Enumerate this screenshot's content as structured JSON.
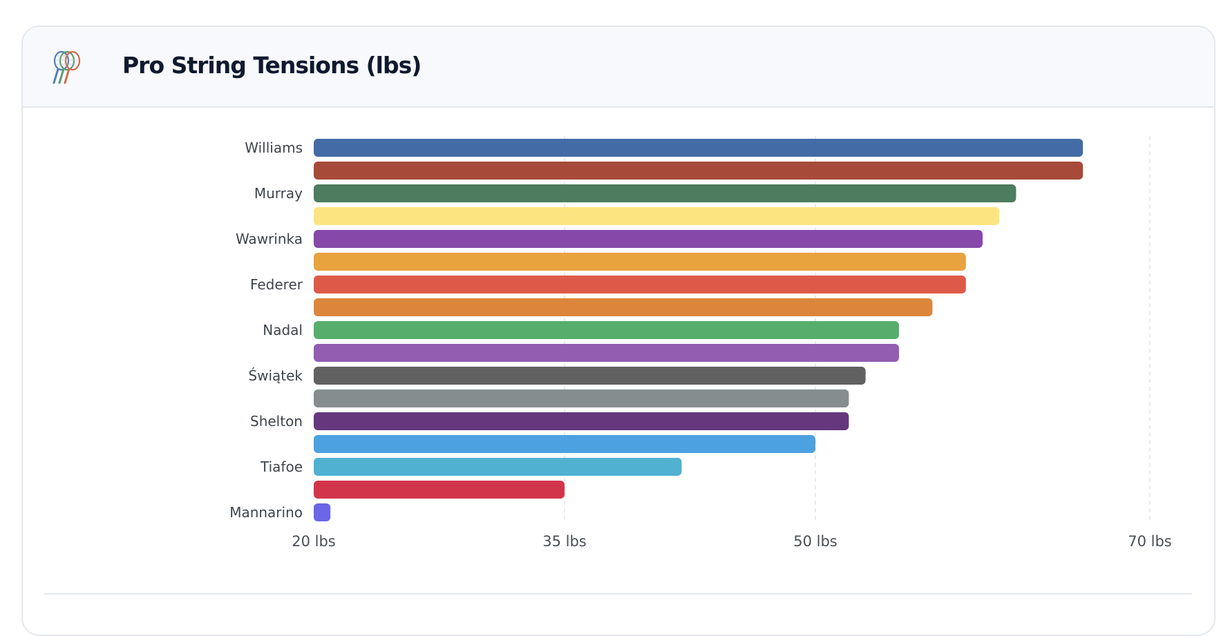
{
  "card": {
    "title": "Pro String Tensions (lbs)",
    "icon": "tennis-racquets-icon"
  },
  "chart_data": {
    "type": "bar",
    "orientation": "horizontal",
    "title": "Pro String Tensions (lbs)",
    "xlabel": "",
    "ylabel": "",
    "xlim": [
      20,
      70
    ],
    "ticks": [
      {
        "value": 20,
        "label": "20 lbs"
      },
      {
        "value": 35,
        "label": "35 lbs"
      },
      {
        "value": 50,
        "label": "50 lbs"
      },
      {
        "value": 70,
        "label": "70 lbs"
      }
    ],
    "grid": true,
    "bars": [
      {
        "label": "Williams",
        "value": 66,
        "color": "#436ba6"
      },
      {
        "label": "",
        "value": 66,
        "color": "#a74a39"
      },
      {
        "label": "Murray",
        "value": 62,
        "color": "#4e7c5e"
      },
      {
        "label": "",
        "value": 61,
        "color": "#fce480"
      },
      {
        "label": "Wawrinka",
        "value": 60,
        "color": "#8649a9"
      },
      {
        "label": "",
        "value": 59,
        "color": "#e8a23e"
      },
      {
        "label": "Federer",
        "value": 59,
        "color": "#de5a48"
      },
      {
        "label": "",
        "value": 57,
        "color": "#dc863c"
      },
      {
        "label": "Nadal",
        "value": 55,
        "color": "#57ad6b"
      },
      {
        "label": "",
        "value": 55,
        "color": "#935db1"
      },
      {
        "label": "Świątek",
        "value": 53,
        "color": "#616161"
      },
      {
        "label": "",
        "value": 52,
        "color": "#868d8f"
      },
      {
        "label": "Shelton",
        "value": 52,
        "color": "#66377d"
      },
      {
        "label": "",
        "value": 50,
        "color": "#4ca1e0"
      },
      {
        "label": "Tiafoe",
        "value": 42,
        "color": "#50b1d1"
      },
      {
        "label": "",
        "value": 35,
        "color": "#d2354b"
      },
      {
        "label": "Mannarino",
        "value": 21,
        "color": "#6b67e6"
      }
    ]
  }
}
